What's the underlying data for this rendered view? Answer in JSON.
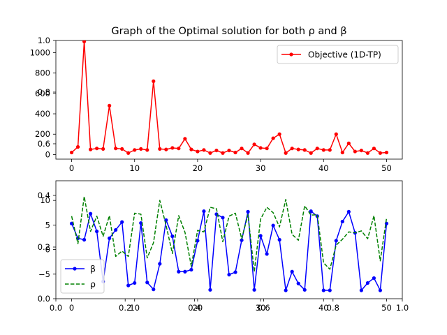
{
  "figure": {
    "title": "Graph of the Optimal solution for both ρ and β"
  },
  "chart_data": [
    {
      "type": "line",
      "role": "ghost-axes",
      "xlim": [
        0,
        1
      ],
      "ylim": [
        0,
        1
      ],
      "xticks": [
        0.0,
        0.2,
        0.4,
        0.6,
        0.8,
        1.0
      ],
      "xtick_labels": [
        "0.0",
        "0.2",
        "0.4",
        "0.6",
        "0.8",
        "1.0"
      ],
      "yticks": [
        0.0,
        0.2,
        0.4,
        0.6,
        0.8,
        1.0
      ],
      "ytick_labels": [
        "0.0",
        "0.2",
        "0.4",
        "0.6",
        "0.8",
        "1.0"
      ]
    },
    {
      "type": "line",
      "title": "",
      "xlim": [
        -2.5,
        52.5
      ],
      "ylim": [
        -45,
        1120
      ],
      "xticks": [
        0,
        10,
        20,
        30,
        40,
        50
      ],
      "xtick_labels": [
        "0",
        "10",
        "20",
        "30",
        "40",
        "50"
      ],
      "yticks": [
        0,
        200,
        400,
        600,
        800,
        1000
      ],
      "ytick_labels": [
        "0",
        "200",
        "400",
        "600",
        "800",
        "1000"
      ],
      "grid": false,
      "legend": "upper right",
      "series": [
        {
          "name": "Objective (1D-TP)",
          "color": "#ff0000",
          "style": "solid",
          "marker": "dot",
          "x": [
            0,
            1,
            2,
            3,
            4,
            5,
            6,
            7,
            8,
            9,
            10,
            11,
            12,
            13,
            14,
            15,
            16,
            17,
            18,
            19,
            20,
            21,
            22,
            23,
            24,
            25,
            26,
            27,
            28,
            29,
            30,
            31,
            32,
            33,
            34,
            35,
            36,
            37,
            38,
            39,
            40,
            41,
            42,
            43,
            44,
            45,
            46,
            47,
            48,
            49,
            50
          ],
          "values": [
            20,
            75,
            1110,
            50,
            60,
            55,
            480,
            60,
            55,
            15,
            45,
            55,
            45,
            720,
            55,
            50,
            65,
            60,
            155,
            50,
            30,
            45,
            15,
            40,
            15,
            40,
            20,
            60,
            15,
            100,
            65,
            60,
            160,
            200,
            15,
            60,
            50,
            45,
            15,
            60,
            45,
            45,
            200,
            20,
            110,
            30,
            40,
            15,
            60,
            15,
            20
          ]
        }
      ]
    },
    {
      "type": "line",
      "title": "",
      "xlim": [
        -2.5,
        52.5
      ],
      "ylim": [
        -10,
        14
      ],
      "xticks": [
        0,
        10,
        20,
        30,
        40,
        50
      ],
      "xtick_labels": [
        "0",
        "10",
        "20",
        "30",
        "40",
        "50"
      ],
      "yticks": [
        -5,
        0,
        5,
        10
      ],
      "ytick_labels": [
        "−5",
        "0",
        "5",
        "10"
      ],
      "grid": false,
      "legend": "lower left",
      "series": [
        {
          "name": "β",
          "color": "#0000ff",
          "style": "solid",
          "marker": "dot",
          "x": [
            0,
            1,
            2,
            3,
            4,
            5,
            6,
            7,
            8,
            9,
            10,
            11,
            12,
            13,
            14,
            15,
            16,
            17,
            18,
            19,
            20,
            21,
            22,
            23,
            24,
            25,
            26,
            27,
            28,
            29,
            30,
            31,
            32,
            33,
            34,
            35,
            36,
            37,
            38,
            39,
            40,
            41,
            42,
            43,
            44,
            45,
            46,
            47,
            48,
            49,
            50
          ],
          "values": [
            5.3,
            2.3,
            2.0,
            7.3,
            3.7,
            -6.5,
            2.3,
            4.0,
            5.6,
            -7.3,
            -6.8,
            5.4,
            -6.7,
            -8.1,
            -2.9,
            6.0,
            2.7,
            -4.5,
            -4.5,
            -4.1,
            1.8,
            7.8,
            -8.2,
            7.2,
            6.5,
            -5.1,
            -4.6,
            1.9,
            7.7,
            -8.2,
            2.8,
            -0.9,
            4.9,
            2.0,
            -8.3,
            -4.5,
            -6.9,
            -8.2,
            7.8,
            6.8,
            -8.3,
            -8.3,
            1.8,
            5.7,
            7.7,
            3.4,
            -8.3,
            -6.8,
            -5.8,
            -8.3,
            5.3
          ]
        },
        {
          "name": "ρ",
          "color": "#008000",
          "style": "dashed",
          "marker": "none",
          "x": [
            0,
            1,
            2,
            3,
            4,
            5,
            6,
            7,
            8,
            9,
            10,
            11,
            12,
            13,
            14,
            15,
            16,
            17,
            18,
            19,
            20,
            21,
            22,
            23,
            24,
            25,
            26,
            27,
            28,
            29,
            30,
            31,
            32,
            33,
            34,
            35,
            36,
            37,
            38,
            39,
            40,
            41,
            42,
            43,
            44,
            45,
            46,
            47,
            48,
            49,
            50
          ],
          "values": [
            6.8,
            1.2,
            10.8,
            3.7,
            6.8,
            2.7,
            6.9,
            -1.4,
            -0.3,
            -1.4,
            7.4,
            7.2,
            -1.7,
            1.4,
            10.0,
            4.9,
            -0.8,
            6.9,
            3.5,
            -3.4,
            3.9,
            3.6,
            8.6,
            8.3,
            1.6,
            6.8,
            7.4,
            2.2,
            7.1,
            -4.5,
            6.2,
            8.6,
            7.5,
            4.6,
            10.2,
            3.1,
            1.9,
            8.9,
            7.0,
            7.1,
            -2.7,
            -4.0,
            0.9,
            2.1,
            3.6,
            3.4,
            3.8,
            2.2,
            6.9,
            -2.3,
            6.4
          ]
        }
      ]
    }
  ]
}
